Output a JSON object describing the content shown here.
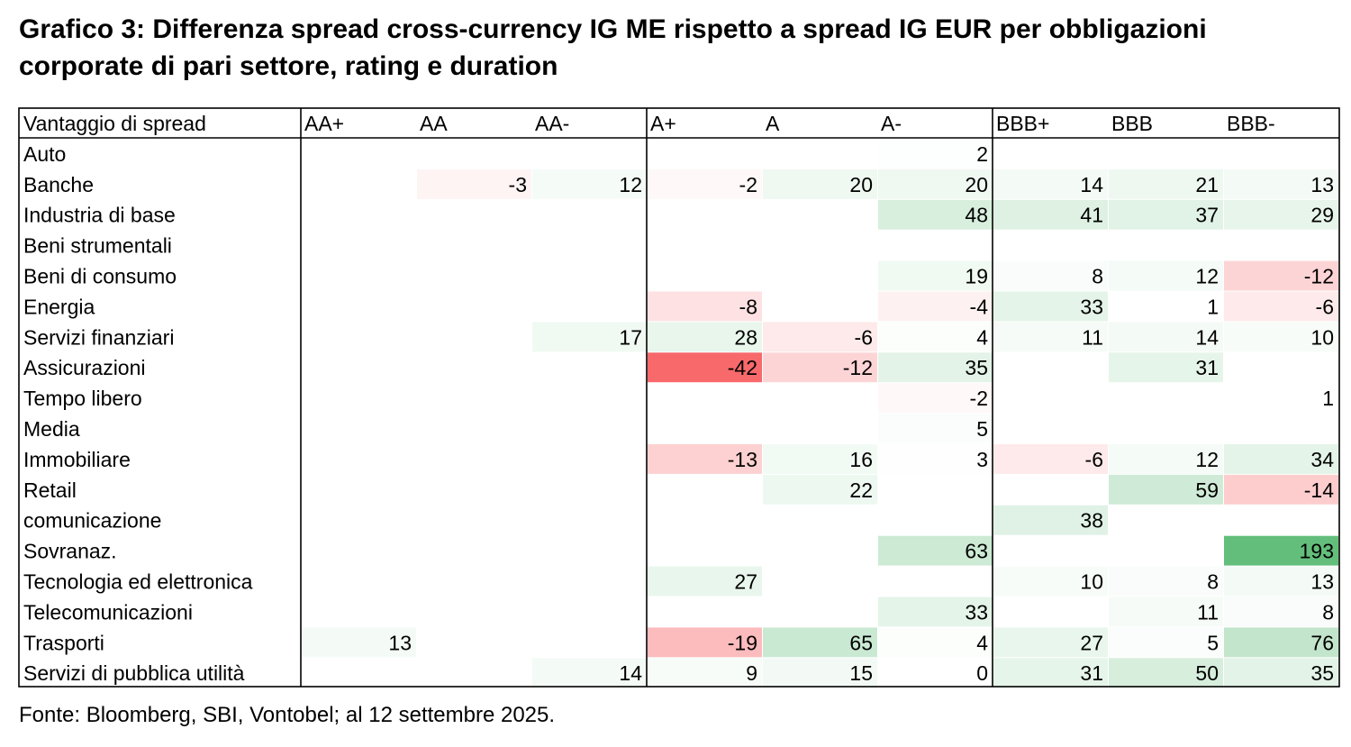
{
  "title": "Grafico 3: Differenza spread cross-currency IG ME rispetto a spread IG EUR per obbligazioni corporate di pari settore, rating e duration",
  "source": "Fonte: Bloomberg, SBI, Vontobel; al 12 settembre 2025.",
  "chart_data": {
    "type": "heatmap",
    "corner_label": "Vantaggio di spread",
    "columns": [
      "AA+",
      "AA",
      "AA-",
      "A+",
      "A",
      "A-",
      "BBB+",
      "BBB",
      "BBB-"
    ],
    "rows": [
      {
        "label": "Auto",
        "values": [
          null,
          null,
          null,
          null,
          null,
          2,
          null,
          null,
          null
        ]
      },
      {
        "label": "Banche",
        "values": [
          null,
          -3,
          12,
          -2,
          20,
          20,
          14,
          21,
          13
        ]
      },
      {
        "label": "Industria di base",
        "values": [
          null,
          null,
          null,
          null,
          null,
          48,
          41,
          37,
          29
        ]
      },
      {
        "label": "Beni strumentali",
        "values": [
          null,
          null,
          null,
          null,
          null,
          null,
          null,
          null,
          null
        ]
      },
      {
        "label": "Beni di consumo",
        "values": [
          null,
          null,
          null,
          null,
          null,
          19,
          8,
          12,
          -12
        ]
      },
      {
        "label": "Energia",
        "values": [
          null,
          null,
          null,
          -8,
          null,
          -4,
          33,
          1,
          -6
        ]
      },
      {
        "label": "Servizi finanziari",
        "values": [
          null,
          null,
          17,
          28,
          -6,
          4,
          11,
          14,
          10
        ]
      },
      {
        "label": "Assicurazioni",
        "values": [
          null,
          null,
          null,
          -42,
          -12,
          35,
          null,
          31,
          null
        ]
      },
      {
        "label": "Tempo libero",
        "values": [
          null,
          null,
          null,
          null,
          null,
          -2,
          null,
          null,
          1
        ]
      },
      {
        "label": "Media",
        "values": [
          null,
          null,
          null,
          null,
          null,
          5,
          null,
          null,
          null
        ]
      },
      {
        "label": "Immobiliare",
        "values": [
          null,
          null,
          null,
          -13,
          16,
          3,
          -6,
          12,
          34
        ]
      },
      {
        "label": "Retail",
        "values": [
          null,
          null,
          null,
          null,
          22,
          null,
          null,
          59,
          -14
        ]
      },
      {
        "label": "comunicazione",
        "values": [
          null,
          null,
          null,
          null,
          null,
          null,
          38,
          null,
          null
        ]
      },
      {
        "label": "Sovranaz.",
        "values": [
          null,
          null,
          null,
          null,
          null,
          63,
          null,
          null,
          193
        ]
      },
      {
        "label": "Tecnologia ed elettronica",
        "values": [
          null,
          null,
          null,
          27,
          null,
          null,
          10,
          8,
          13
        ]
      },
      {
        "label": "Telecomunicazioni",
        "values": [
          null,
          null,
          null,
          null,
          null,
          33,
          null,
          11,
          8
        ]
      },
      {
        "label": "Trasporti",
        "values": [
          13,
          null,
          null,
          -19,
          65,
          4,
          27,
          5,
          76
        ]
      },
      {
        "label": "Servizi di pubblica utilità",
        "values": [
          null,
          null,
          14,
          9,
          15,
          0,
          31,
          50,
          35
        ]
      }
    ],
    "colors": {
      "positive_max": "#63be7b",
      "negative_max": "#f8696b",
      "neutral": "#ffffff",
      "border": "#000000"
    }
  }
}
